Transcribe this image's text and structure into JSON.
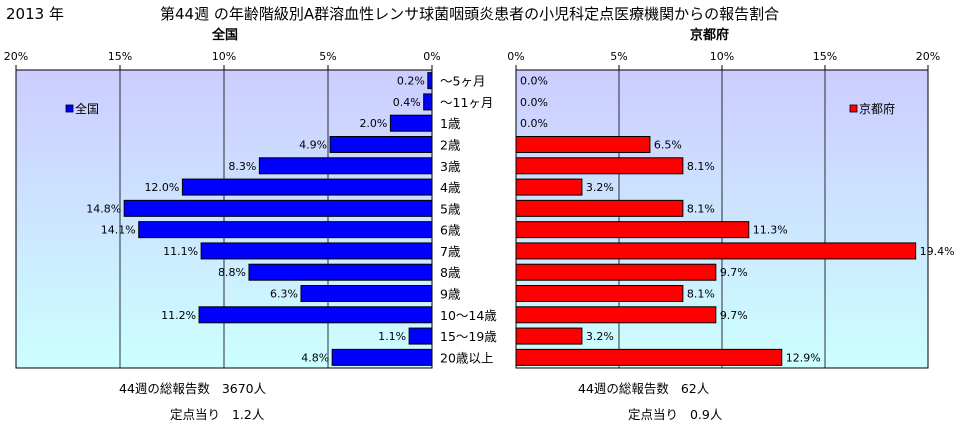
{
  "header": {
    "year": "2013 年",
    "title": "第44週 の年齢階級別A群溶血性レンサ球菌咽頭炎患者の小児科定点医療機関からの報告割合"
  },
  "colors": {
    "national_bar": "#0000ff",
    "kyoto_bar": "#ff0000",
    "plot_bg_top": "#ccccff",
    "plot_bg_bottom": "#ccffff"
  },
  "chart_data": [
    {
      "type": "bar",
      "orientation": "horizontal",
      "direction": "right-to-left",
      "title": "全国",
      "legend": "全国",
      "legend_placement": "top-left",
      "xlim": [
        0,
        20
      ],
      "ticks": [
        "20%",
        "15%",
        "10%",
        "5%",
        "0%"
      ],
      "tick_values": [
        20,
        15,
        10,
        5,
        0
      ],
      "categories": [
        "～5ヶ月",
        "～11ヶ月",
        "1歳",
        "2歳",
        "3歳",
        "4歳",
        "5歳",
        "6歳",
        "7歳",
        "8歳",
        "9歳",
        "10～14歳",
        "15～19歳",
        "20歳以上"
      ],
      "values": [
        0.2,
        0.4,
        2.0,
        4.9,
        8.3,
        12.0,
        14.8,
        14.1,
        11.1,
        8.8,
        6.3,
        11.2,
        1.1,
        4.8
      ],
      "value_labels": [
        "0.2%",
        "0.4%",
        "2.0%",
        "4.9%",
        "8.3%",
        "12.0%",
        "14.8%",
        "14.1%",
        "11.1%",
        "8.8%",
        "6.3%",
        "11.2%",
        "1.1%",
        "4.8%"
      ],
      "grid": true
    },
    {
      "type": "bar",
      "orientation": "horizontal",
      "direction": "left-to-right",
      "title": "京都府",
      "legend": "京都府",
      "legend_placement": "top-right",
      "xlim": [
        0,
        20
      ],
      "ticks": [
        "0%",
        "5%",
        "10%",
        "15%",
        "20%"
      ],
      "tick_values": [
        0,
        5,
        10,
        15,
        20
      ],
      "categories": [
        "～5ヶ月",
        "～11ヶ月",
        "1歳",
        "2歳",
        "3歳",
        "4歳",
        "5歳",
        "6歳",
        "7歳",
        "8歳",
        "9歳",
        "10～14歳",
        "15～19歳",
        "20歳以上"
      ],
      "values": [
        0.0,
        0.0,
        0.0,
        6.5,
        8.1,
        3.2,
        8.1,
        11.3,
        19.4,
        9.7,
        8.1,
        9.7,
        3.2,
        12.9
      ],
      "value_labels": [
        "0.0%",
        "0.0%",
        "0.0%",
        "6.5%",
        "8.1%",
        "3.2%",
        "8.1%",
        "11.3%",
        "19.4%",
        "9.7%",
        "8.1%",
        "9.7%",
        "3.2%",
        "12.9%"
      ],
      "grid": true
    }
  ],
  "summary": {
    "national": {
      "total_label": "44週の総報告数",
      "total_value": "3670人",
      "per_site_label": "定点当り",
      "per_site_value": "1.2人"
    },
    "kyoto": {
      "total_label": "44週の総報告数",
      "total_value": "62人",
      "per_site_label": "定点当り",
      "per_site_value": "0.9人"
    }
  }
}
